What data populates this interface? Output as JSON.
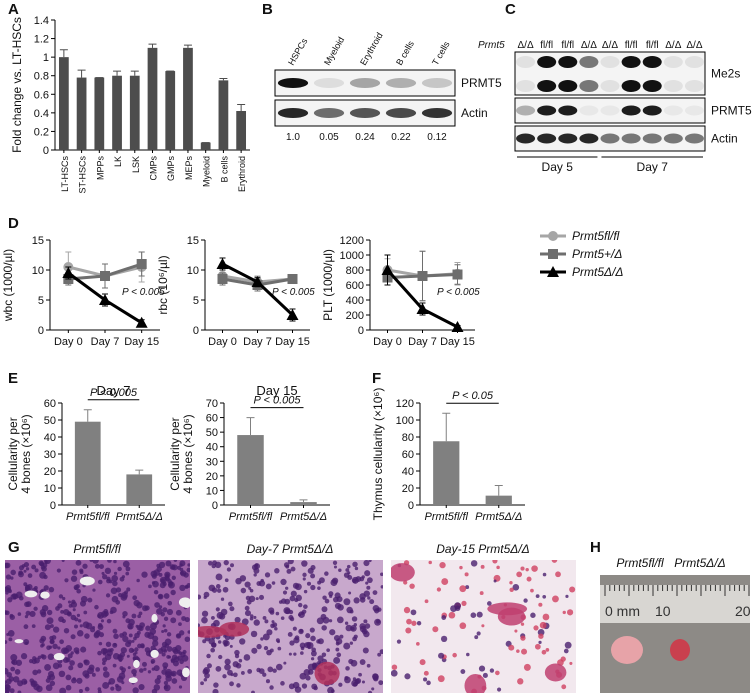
{
  "panel_labels": [
    "A",
    "B",
    "C",
    "D",
    "E",
    "F",
    "G",
    "H"
  ],
  "chart_data": [
    {
      "type": "bar",
      "ylabel": [
        "Fold change vs. LT-HSCs"
      ],
      "categories": [
        "LT-HSCs",
        "ST-HSCs",
        "MPPs",
        "LK",
        "LSK",
        "CMPs",
        "GMPs",
        "MEPs",
        "Myeloid",
        "B cells",
        "Erythroid"
      ],
      "values": [
        1.0,
        0.78,
        0.78,
        0.8,
        0.8,
        1.1,
        0.85,
        1.1,
        0.08,
        0.75,
        0.42
      ],
      "errors": [
        0.08,
        0.08,
        0,
        0.05,
        0.05,
        0.04,
        0,
        0.03,
        0,
        0.02,
        0.07
      ],
      "color": "#4d4d4d",
      "ylim": [
        0,
        1.4
      ],
      "yticks": [
        0,
        0.2,
        0.4,
        0.6,
        0.8,
        1,
        1.2,
        1.4
      ]
    },
    {
      "type": "line",
      "ylabel": [
        "wbc (1000/µl)"
      ],
      "categories": [
        "Day 0",
        "Day 7",
        "Day 15"
      ],
      "annotation": "P < 0.005",
      "ylim": [
        0,
        15
      ],
      "yticks": [
        0,
        5,
        10,
        15
      ],
      "series": [
        {
          "color": "#a6a6a6",
          "values": [
            10.5,
            9,
            10.5
          ],
          "errors": [
            2.5,
            2,
            2.5
          ]
        },
        {
          "color": "#6e6e6e",
          "values": [
            8.5,
            9,
            11
          ],
          "errors": [
            1,
            2,
            2
          ]
        },
        {
          "color": "#000000",
          "values": [
            9.5,
            5,
            1.2
          ],
          "errors": [
            1,
            1,
            0.5
          ]
        }
      ]
    },
    {
      "type": "line",
      "ylabel": [
        "rbc (10⁶/µl)"
      ],
      "categories": [
        "Day 0",
        "Day 7",
        "Day 15"
      ],
      "annotation": "P < 0.005",
      "ylim": [
        0,
        15
      ],
      "yticks": [
        0,
        5,
        10,
        15
      ],
      "series": [
        {
          "color": "#a6a6a6",
          "values": [
            9,
            8,
            8.5
          ],
          "errors": [
            1,
            1,
            0.5
          ]
        },
        {
          "color": "#6e6e6e",
          "values": [
            8.5,
            7.5,
            8.5
          ],
          "errors": [
            1,
            1,
            0.5
          ]
        },
        {
          "color": "#000000",
          "values": [
            11,
            8,
            2.5
          ],
          "errors": [
            1,
            0.8,
            1
          ]
        }
      ]
    },
    {
      "type": "line",
      "ylabel": [
        "PLT (1000/µl)"
      ],
      "categories": [
        "Day 0",
        "Day 7",
        "Day 15"
      ],
      "annotation": "P < 0.005",
      "ylim": [
        0,
        1200
      ],
      "yticks": [
        0,
        200,
        400,
        600,
        800,
        1000,
        1200
      ],
      "series": [
        {
          "name": "Prmt5fl/fl",
          "color": "#a6a6a6",
          "values": [
            800,
            720,
            750
          ],
          "errors": [
            150,
            330,
            150
          ]
        },
        {
          "name": "Prmt5+/Δ",
          "color": "#6e6e6e",
          "values": [
            700,
            720,
            740
          ],
          "errors": [
            100,
            330,
            130
          ]
        },
        {
          "name": "Prmt5Δ/Δ",
          "color": "#000000",
          "values": [
            800,
            280,
            40
          ],
          "errors": [
            200,
            80,
            20
          ]
        }
      ]
    },
    {
      "type": "bar",
      "title": "Day 7",
      "ylabel": [
        "Cellularity per",
        "4 bones (×10⁶)"
      ],
      "categories": [
        "Prmt5fl/fl",
        "Prmt5Δ/Δ"
      ],
      "values": [
        49,
        18
      ],
      "errors": [
        7,
        2.5
      ],
      "annotation": "P < 0.005",
      "color": "#808080",
      "ylim": [
        0,
        60
      ],
      "yticks": [
        0,
        10,
        20,
        30,
        40,
        50,
        60
      ]
    },
    {
      "type": "bar",
      "title": "Day 15",
      "ylabel": [
        "Cellularity per",
        "4 bones (×10⁶)"
      ],
      "categories": [
        "Prmt5fl/fl",
        "Prmt5Δ/Δ"
      ],
      "values": [
        48,
        2
      ],
      "errors": [
        12,
        1.5
      ],
      "annotation": "P < 0.005",
      "color": "#808080",
      "ylim": [
        0,
        70
      ],
      "yticks": [
        0,
        10,
        20,
        30,
        40,
        50,
        60,
        70
      ]
    },
    {
      "type": "bar",
      "ylabel": [
        "Thymus cellularity (×10⁶)"
      ],
      "categories": [
        "Prmt5fl/fl",
        "Prmt5Δ/Δ"
      ],
      "values": [
        75,
        11
      ],
      "errors": [
        33,
        12
      ],
      "annotation": "P < 0.05",
      "color": "#808080",
      "ylim": [
        0,
        120
      ],
      "yticks": [
        0,
        20,
        40,
        60,
        80,
        100,
        120
      ]
    }
  ],
  "blot_b": {
    "columns": [
      "HSPCs",
      "Myeloid",
      "Erythroid",
      "B cells",
      "T cells"
    ],
    "rows": [
      "PRMT5",
      "Actin"
    ],
    "quantification": [
      "1.0",
      "0.05",
      "0.24",
      "0.22",
      "0.12"
    ]
  },
  "blot_c": {
    "gene": "Prmt5",
    "lanes": [
      "Δ/Δ",
      "fl/fl",
      "fl/fl",
      "Δ/Δ",
      "Δ/Δ",
      "fl/fl",
      "fl/fl",
      "Δ/Δ",
      "Δ/Δ"
    ],
    "rows": [
      "Me2s",
      "PRMT5",
      "Actin"
    ],
    "days": [
      "Day 5",
      "Day 7"
    ]
  },
  "histology": {
    "labels": [
      "Prmt5fl/fl",
      "Day-7 Prmt5Δ/Δ",
      "Day-15 Prmt5Δ/Δ"
    ]
  },
  "gross": {
    "labels": [
      "Prmt5fl/fl",
      "Prmt5Δ/Δ"
    ],
    "ruler": [
      "0 mm",
      "10",
      "20"
    ]
  }
}
